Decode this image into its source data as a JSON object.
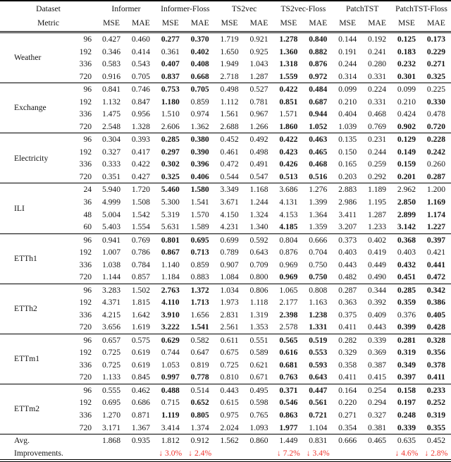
{
  "header": {
    "row1_col1": "Dataset",
    "row2_col1": "Metric",
    "groups": [
      "Informer",
      "Informer-Floss",
      "TS2vec",
      "TS2vec-Floss",
      "PatchTST",
      "PatchTST-Floss"
    ],
    "sub_metrics": [
      "MSE",
      "MAE"
    ]
  },
  "colors": {
    "improvement_red": "#f0342e"
  },
  "blocks": [
    {
      "dataset": "Weather",
      "rows": [
        {
          "h": "96",
          "v": [
            "0.427",
            "0.460",
            "0.277",
            "0.370",
            "1.719",
            "0.921",
            "1.278",
            "0.840",
            "0.144",
            "0.192",
            "0.125",
            "0.173"
          ],
          "bold": [
            0,
            0,
            1,
            1,
            0,
            0,
            1,
            1,
            0,
            0,
            1,
            1
          ]
        },
        {
          "h": "192",
          "v": [
            "0.346",
            "0.414",
            "0.361",
            "0.402",
            "1.650",
            "0.925",
            "1.360",
            "0.882",
            "0.191",
            "0.241",
            "0.183",
            "0.229"
          ],
          "bold": [
            0,
            0,
            0,
            1,
            0,
            0,
            1,
            1,
            0,
            0,
            1,
            1
          ]
        },
        {
          "h": "336",
          "v": [
            "0.583",
            "0.543",
            "0.407",
            "0.408",
            "1.949",
            "1.043",
            "1.318",
            "0.876",
            "0.244",
            "0.280",
            "0.232",
            "0.271"
          ],
          "bold": [
            0,
            0,
            1,
            1,
            0,
            0,
            1,
            1,
            0,
            0,
            1,
            1
          ]
        },
        {
          "h": "720",
          "v": [
            "0.916",
            "0.705",
            "0.837",
            "0.668",
            "2.718",
            "1.287",
            "1.559",
            "0.972",
            "0.314",
            "0.331",
            "0.301",
            "0.325"
          ],
          "bold": [
            0,
            0,
            1,
            1,
            0,
            0,
            1,
            1,
            0,
            0,
            1,
            1
          ]
        }
      ]
    },
    {
      "dataset": "Exchange",
      "rows": [
        {
          "h": "96",
          "v": [
            "0.841",
            "0.746",
            "0.753",
            "0.705",
            "0.498",
            "0.527",
            "0.422",
            "0.484",
            "0.099",
            "0.224",
            "0.099",
            "0.225"
          ],
          "bold": [
            0,
            0,
            1,
            1,
            0,
            0,
            1,
            1,
            0,
            0,
            0,
            0
          ]
        },
        {
          "h": "192",
          "v": [
            "1.132",
            "0.847",
            "1.180",
            "0.859",
            "1.112",
            "0.781",
            "0.851",
            "0.687",
            "0.210",
            "0.331",
            "0.210",
            "0.330"
          ],
          "bold": [
            0,
            0,
            1,
            0,
            0,
            0,
            1,
            1,
            0,
            0,
            0,
            1
          ]
        },
        {
          "h": "336",
          "v": [
            "1.475",
            "0.956",
            "1.510",
            "0.974",
            "1.561",
            "0.967",
            "1.571",
            "0.944",
            "0.404",
            "0.468",
            "0.424",
            "0.478"
          ],
          "bold": [
            0,
            0,
            0,
            0,
            0,
            0,
            0,
            1,
            0,
            0,
            0,
            0
          ]
        },
        {
          "h": "720",
          "v": [
            "2.548",
            "1.328",
            "2.606",
            "1.362",
            "2.688",
            "1.266",
            "1.860",
            "1.052",
            "1.039",
            "0.769",
            "0.902",
            "0.720"
          ],
          "bold": [
            0,
            0,
            0,
            0,
            0,
            0,
            1,
            1,
            0,
            0,
            1,
            1
          ]
        }
      ]
    },
    {
      "dataset": "Electricity",
      "rows": [
        {
          "h": "96",
          "v": [
            "0.304",
            "0.393",
            "0.285",
            "0.380",
            "0.452",
            "0.492",
            "0.422",
            "0.463",
            "0.135",
            "0.231",
            "0.129",
            "0.228"
          ],
          "bold": [
            0,
            0,
            1,
            1,
            0,
            0,
            1,
            1,
            0,
            0,
            1,
            1
          ]
        },
        {
          "h": "192",
          "v": [
            "0.327",
            "0.417",
            "0.297",
            "0.390",
            "0.461",
            "0.498",
            "0.423",
            "0.465",
            "0.150",
            "0.244",
            "0.149",
            "0.242"
          ],
          "bold": [
            0,
            0,
            1,
            1,
            0,
            0,
            1,
            1,
            0,
            0,
            1,
            1
          ]
        },
        {
          "h": "336",
          "v": [
            "0.333",
            "0.422",
            "0.302",
            "0.396",
            "0.472",
            "0.491",
            "0.426",
            "0.468",
            "0.165",
            "0.259",
            "0.159",
            "0.260"
          ],
          "bold": [
            0,
            0,
            1,
            1,
            0,
            0,
            1,
            1,
            0,
            0,
            1,
            0
          ]
        },
        {
          "h": "720",
          "v": [
            "0.351",
            "0.427",
            "0.325",
            "0.406",
            "0.544",
            "0.547",
            "0.513",
            "0.516",
            "0.203",
            "0.292",
            "0.201",
            "0.287"
          ],
          "bold": [
            0,
            0,
            1,
            1,
            0,
            0,
            1,
            1,
            0,
            0,
            1,
            1
          ]
        }
      ]
    },
    {
      "dataset": "ILI",
      "rows": [
        {
          "h": "24",
          "v": [
            "5.940",
            "1.720",
            "5.460",
            "1.580",
            "3.349",
            "1.168",
            "3.686",
            "1.276",
            "2.883",
            "1.189",
            "2.962",
            "1.200"
          ],
          "bold": [
            0,
            0,
            1,
            1,
            0,
            0,
            0,
            0,
            0,
            0,
            0,
            0
          ]
        },
        {
          "h": "36",
          "v": [
            "4.999",
            "1.508",
            "5.300",
            "1.541",
            "3.671",
            "1.244",
            "4.131",
            "1.399",
            "2.986",
            "1.195",
            "2.850",
            "1.169"
          ],
          "bold": [
            0,
            0,
            0,
            0,
            0,
            0,
            0,
            0,
            0,
            0,
            1,
            1
          ]
        },
        {
          "h": "48",
          "v": [
            "5.004",
            "1.542",
            "5.319",
            "1.570",
            "4.150",
            "1.324",
            "4.153",
            "1.364",
            "3.411",
            "1.287",
            "2.899",
            "1.174"
          ],
          "bold": [
            0,
            0,
            0,
            0,
            0,
            0,
            0,
            0,
            0,
            0,
            1,
            1
          ]
        },
        {
          "h": "60",
          "v": [
            "5.403",
            "1.554",
            "5.631",
            "1.589",
            "4.231",
            "1.340",
            "4.185",
            "1.359",
            "3.207",
            "1.233",
            "3.142",
            "1.227"
          ],
          "bold": [
            0,
            0,
            0,
            0,
            0,
            0,
            1,
            0,
            0,
            0,
            1,
            1
          ]
        }
      ]
    },
    {
      "dataset": "ETTh1",
      "rows": [
        {
          "h": "96",
          "v": [
            "0.941",
            "0.769",
            "0.801",
            "0.695",
            "0.699",
            "0.592",
            "0.804",
            "0.666",
            "0.373",
            "0.402",
            "0.368",
            "0.397"
          ],
          "bold": [
            0,
            0,
            1,
            1,
            0,
            0,
            0,
            0,
            0,
            0,
            1,
            1
          ]
        },
        {
          "h": "192",
          "v": [
            "1.007",
            "0.786",
            "0.867",
            "0.713",
            "0.789",
            "0.643",
            "0.876",
            "0.704",
            "0.403",
            "0.419",
            "0.403",
            "0.421"
          ],
          "bold": [
            0,
            0,
            1,
            1,
            0,
            0,
            0,
            0,
            0,
            0,
            0,
            0
          ]
        },
        {
          "h": "336",
          "v": [
            "1.038",
            "0.784",
            "1.140",
            "0.859",
            "0.907",
            "0.709",
            "0.969",
            "0.750",
            "0.443",
            "0.449",
            "0.432",
            "0.441"
          ],
          "bold": [
            0,
            0,
            0,
            0,
            0,
            0,
            0,
            0,
            0,
            0,
            1,
            1
          ]
        },
        {
          "h": "720",
          "v": [
            "1.144",
            "0.857",
            "1.184",
            "0.883",
            "1.084",
            "0.800",
            "0.969",
            "0.750",
            "0.482",
            "0.490",
            "0.451",
            "0.472"
          ],
          "bold": [
            0,
            0,
            0,
            0,
            0,
            0,
            1,
            1,
            0,
            0,
            1,
            1
          ]
        }
      ]
    },
    {
      "dataset": "ETTh2",
      "rows": [
        {
          "h": "96",
          "v": [
            "3.283",
            "1.502",
            "2.763",
            "1.372",
            "1.034",
            "0.806",
            "1.065",
            "0.808",
            "0.287",
            "0.344",
            "0.285",
            "0.342"
          ],
          "bold": [
            0,
            0,
            1,
            1,
            0,
            0,
            0,
            0,
            0,
            0,
            1,
            1
          ]
        },
        {
          "h": "192",
          "v": [
            "4.371",
            "1.815",
            "4.110",
            "1.713",
            "1.973",
            "1.118",
            "2.177",
            "1.163",
            "0.363",
            "0.392",
            "0.359",
            "0.386"
          ],
          "bold": [
            0,
            0,
            1,
            1,
            0,
            0,
            0,
            0,
            0,
            0,
            1,
            1
          ]
        },
        {
          "h": "336",
          "v": [
            "4.215",
            "1.642",
            "3.910",
            "1.656",
            "2.831",
            "1.319",
            "2.398",
            "1.238",
            "0.375",
            "0.409",
            "0.376",
            "0.405"
          ],
          "bold": [
            0,
            0,
            1,
            0,
            0,
            0,
            1,
            1,
            0,
            0,
            0,
            1
          ]
        },
        {
          "h": "720",
          "v": [
            "3.656",
            "1.619",
            "3.222",
            "1.541",
            "2.561",
            "1.353",
            "2.578",
            "1.331",
            "0.411",
            "0.443",
            "0.399",
            "0.428"
          ],
          "bold": [
            0,
            0,
            1,
            1,
            0,
            0,
            0,
            1,
            0,
            0,
            1,
            1
          ]
        }
      ]
    },
    {
      "dataset": "ETTm1",
      "rows": [
        {
          "h": "96",
          "v": [
            "0.657",
            "0.575",
            "0.629",
            "0.582",
            "0.611",
            "0.551",
            "0.565",
            "0.519",
            "0.282",
            "0.339",
            "0.281",
            "0.328"
          ],
          "bold": [
            0,
            0,
            1,
            0,
            0,
            0,
            1,
            1,
            0,
            0,
            1,
            1
          ]
        },
        {
          "h": "192",
          "v": [
            "0.725",
            "0.619",
            "0.744",
            "0.647",
            "0.675",
            "0.589",
            "0.616",
            "0.553",
            "0.329",
            "0.369",
            "0.319",
            "0.356"
          ],
          "bold": [
            0,
            0,
            0,
            0,
            0,
            0,
            1,
            1,
            0,
            0,
            1,
            1
          ]
        },
        {
          "h": "336",
          "v": [
            "0.725",
            "0.619",
            "1.053",
            "0.819",
            "0.725",
            "0.621",
            "0.681",
            "0.593",
            "0.358",
            "0.387",
            "0.349",
            "0.378"
          ],
          "bold": [
            0,
            0,
            0,
            0,
            0,
            0,
            1,
            1,
            0,
            0,
            1,
            1
          ]
        },
        {
          "h": "720",
          "v": [
            "1.133",
            "0.845",
            "0.997",
            "0.778",
            "0.810",
            "0.671",
            "0.763",
            "0.643",
            "0.411",
            "0.415",
            "0.397",
            "0.411"
          ],
          "bold": [
            0,
            0,
            1,
            1,
            0,
            0,
            1,
            1,
            0,
            0,
            1,
            1
          ]
        }
      ]
    },
    {
      "dataset": "ETTm2",
      "rows": [
        {
          "h": "96",
          "v": [
            "0.555",
            "0.462",
            "0.488",
            "0.514",
            "0.443",
            "0.495",
            "0.371",
            "0.447",
            "0.164",
            "0.254",
            "0.158",
            "0.233"
          ],
          "bold": [
            0,
            0,
            1,
            0,
            0,
            0,
            1,
            1,
            0,
            0,
            1,
            1
          ]
        },
        {
          "h": "192",
          "v": [
            "0.695",
            "0.686",
            "0.715",
            "0.652",
            "0.615",
            "0.598",
            "0.546",
            "0.561",
            "0.220",
            "0.294",
            "0.197",
            "0.252"
          ],
          "bold": [
            0,
            0,
            0,
            1,
            0,
            0,
            1,
            1,
            0,
            0,
            1,
            1
          ]
        },
        {
          "h": "336",
          "v": [
            "1.270",
            "0.871",
            "1.119",
            "0.805",
            "0.975",
            "0.765",
            "0.863",
            "0.721",
            "0.271",
            "0.327",
            "0.248",
            "0.319"
          ],
          "bold": [
            0,
            0,
            1,
            1,
            0,
            0,
            1,
            1,
            0,
            0,
            1,
            1
          ]
        },
        {
          "h": "720",
          "v": [
            "3.171",
            "1.367",
            "3.414",
            "1.374",
            "2.024",
            "1.093",
            "1.977",
            "1.104",
            "0.354",
            "0.381",
            "0.339",
            "0.355"
          ],
          "bold": [
            0,
            0,
            0,
            0,
            0,
            0,
            1,
            0,
            0,
            0,
            1,
            1
          ]
        }
      ]
    }
  ],
  "footer": {
    "avg_label": "Avg.",
    "avg_values": [
      "1.868",
      "0.935",
      "1.812",
      "0.912",
      "1.562",
      "0.860",
      "1.449",
      "0.831",
      "0.666",
      "0.465",
      "0.635",
      "0.452"
    ],
    "improvements_label": "Improvements.",
    "improvements": [
      "",
      "",
      "↓ 3.0%",
      "↓ 2.4%",
      "",
      "",
      "↓ 7.2%",
      "↓ 3.4%",
      "",
      "",
      "↓ 4.6%",
      "↓ 2.8%"
    ]
  }
}
